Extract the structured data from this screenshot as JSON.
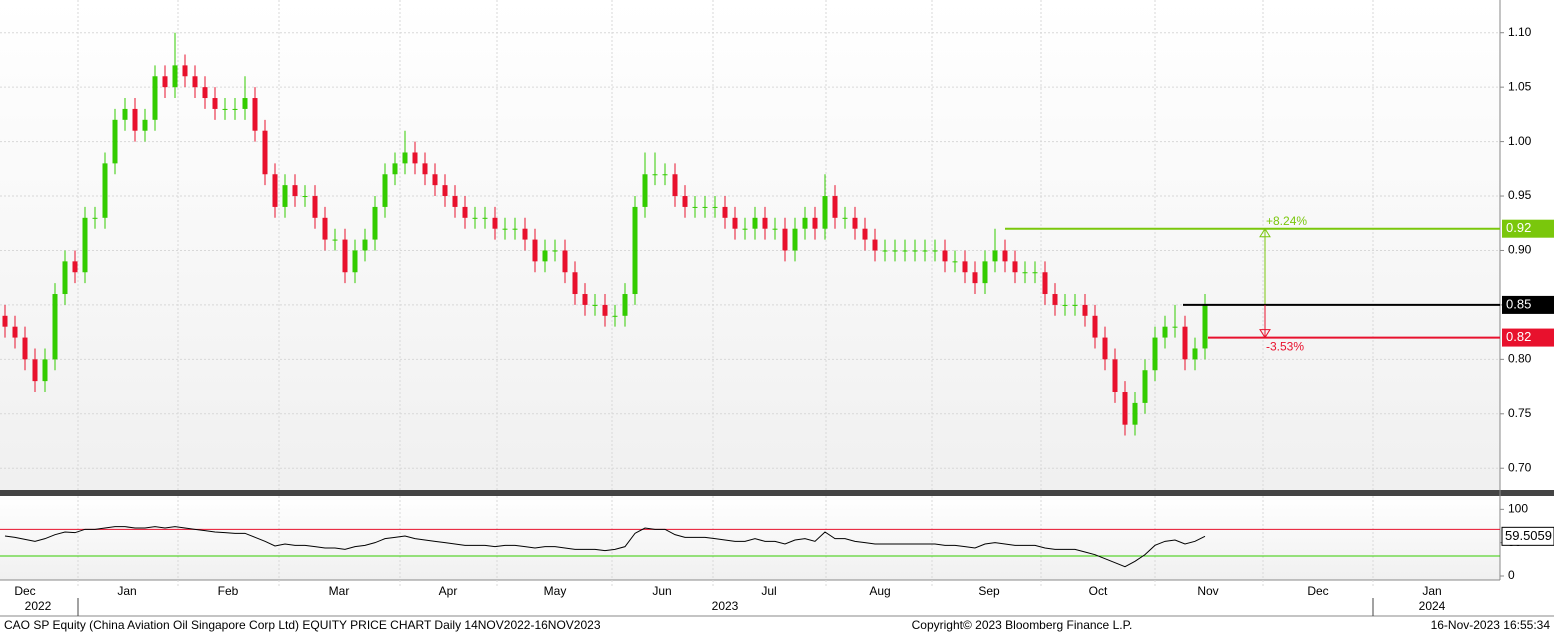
{
  "chart_data": {
    "type": "candlestick",
    "title": "CAO SP Equity (China Aviation Oil Singapore Corp Ltd) EQUITY PRICE CHART  Daily 14NOV2022-16NOV2023",
    "copyright": "Copyright© 2023 Bloomberg Finance L.P.",
    "timestamp": "16-Nov-2023 16:55:34",
    "months": [
      "Dec",
      "Jan",
      "Feb",
      "Mar",
      "Apr",
      "May",
      "Jun",
      "Jul",
      "Aug",
      "Sep",
      "Oct",
      "Nov",
      "Dec",
      "Jan"
    ],
    "years": [
      "2022",
      "2023",
      "2024"
    ],
    "up_color": "#33cc00",
    "down_color": "#e8112d",
    "open": [
      0.84,
      0.83,
      0.82,
      0.8,
      0.78,
      0.8,
      0.86,
      0.89,
      0.88,
      0.93,
      0.93,
      0.98,
      1.02,
      1.03,
      1.01,
      1.02,
      1.06,
      1.05,
      1.07,
      1.06,
      1.05,
      1.04,
      1.03,
      1.03,
      1.03,
      1.04,
      1.01,
      0.97,
      0.94,
      0.96,
      0.95,
      0.95,
      0.93,
      0.91,
      0.91,
      0.88,
      0.9,
      0.91,
      0.94,
      0.97,
      0.98,
      0.99,
      0.98,
      0.97,
      0.96,
      0.95,
      0.94,
      0.93,
      0.93,
      0.93,
      0.92,
      0.92,
      0.92,
      0.91,
      0.89,
      0.9,
      0.9,
      0.88,
      0.86,
      0.85,
      0.85,
      0.84,
      0.84,
      0.86,
      0.94,
      0.97,
      0.97,
      0.97,
      0.95,
      0.94,
      0.94,
      0.94,
      0.94,
      0.93,
      0.92,
      0.92,
      0.93,
      0.92,
      0.92,
      0.9,
      0.92,
      0.93,
      0.92,
      0.95,
      0.93,
      0.93,
      0.92,
      0.91,
      0.9,
      0.9,
      0.9,
      0.9,
      0.9,
      0.9,
      0.9,
      0.89,
      0.89,
      0.88,
      0.87,
      0.89,
      0.9,
      0.89,
      0.88,
      0.88,
      0.88,
      0.86,
      0.85,
      0.85,
      0.85,
      0.84,
      0.82,
      0.8,
      0.77,
      0.74,
      0.76,
      0.79,
      0.82,
      0.83,
      0.83,
      0.8,
      0.81
    ],
    "high": [
      0.85,
      0.84,
      0.83,
      0.81,
      0.81,
      0.87,
      0.9,
      0.9,
      0.94,
      0.94,
      0.99,
      1.03,
      1.04,
      1.04,
      1.03,
      1.07,
      1.07,
      1.1,
      1.08,
      1.07,
      1.06,
      1.05,
      1.04,
      1.04,
      1.06,
      1.05,
      1.02,
      0.98,
      0.97,
      0.97,
      0.96,
      0.96,
      0.94,
      0.92,
      0.92,
      0.91,
      0.92,
      0.95,
      0.98,
      0.99,
      1.01,
      1.0,
      0.99,
      0.98,
      0.97,
      0.96,
      0.95,
      0.94,
      0.94,
      0.94,
      0.93,
      0.93,
      0.93,
      0.92,
      0.91,
      0.91,
      0.91,
      0.89,
      0.87,
      0.86,
      0.86,
      0.85,
      0.87,
      0.95,
      0.99,
      0.99,
      0.98,
      0.98,
      0.96,
      0.95,
      0.95,
      0.95,
      0.95,
      0.94,
      0.93,
      0.94,
      0.94,
      0.93,
      0.93,
      0.93,
      0.94,
      0.94,
      0.97,
      0.96,
      0.94,
      0.94,
      0.93,
      0.92,
      0.91,
      0.91,
      0.91,
      0.91,
      0.91,
      0.91,
      0.91,
      0.9,
      0.9,
      0.89,
      0.9,
      0.92,
      0.91,
      0.9,
      0.89,
      0.89,
      0.89,
      0.87,
      0.86,
      0.86,
      0.86,
      0.85,
      0.83,
      0.81,
      0.78,
      0.77,
      0.8,
      0.83,
      0.84,
      0.85,
      0.84,
      0.82,
      0.86
    ],
    "low": [
      0.82,
      0.81,
      0.79,
      0.77,
      0.77,
      0.79,
      0.85,
      0.87,
      0.87,
      0.92,
      0.92,
      0.97,
      1.01,
      1.0,
      1.0,
      1.01,
      1.04,
      1.04,
      1.05,
      1.04,
      1.03,
      1.02,
      1.02,
      1.02,
      1.02,
      1.0,
      0.96,
      0.93,
      0.93,
      0.94,
      0.94,
      0.92,
      0.9,
      0.9,
      0.87,
      0.87,
      0.89,
      0.9,
      0.93,
      0.96,
      0.97,
      0.97,
      0.96,
      0.95,
      0.94,
      0.93,
      0.92,
      0.92,
      0.92,
      0.91,
      0.91,
      0.91,
      0.9,
      0.88,
      0.88,
      0.89,
      0.87,
      0.85,
      0.84,
      0.84,
      0.83,
      0.83,
      0.83,
      0.85,
      0.93,
      0.96,
      0.96,
      0.94,
      0.93,
      0.93,
      0.93,
      0.93,
      0.92,
      0.91,
      0.91,
      0.91,
      0.91,
      0.91,
      0.89,
      0.89,
      0.91,
      0.91,
      0.91,
      0.92,
      0.92,
      0.91,
      0.9,
      0.89,
      0.89,
      0.89,
      0.89,
      0.89,
      0.89,
      0.89,
      0.88,
      0.88,
      0.87,
      0.86,
      0.86,
      0.88,
      0.88,
      0.87,
      0.87,
      0.87,
      0.85,
      0.84,
      0.84,
      0.84,
      0.83,
      0.81,
      0.79,
      0.76,
      0.73,
      0.73,
      0.75,
      0.78,
      0.81,
      0.82,
      0.79,
      0.79,
      0.8
    ],
    "close": [
      0.83,
      0.82,
      0.8,
      0.78,
      0.8,
      0.86,
      0.89,
      0.88,
      0.93,
      0.93,
      0.98,
      1.02,
      1.03,
      1.01,
      1.02,
      1.06,
      1.05,
      1.07,
      1.06,
      1.05,
      1.04,
      1.03,
      1.03,
      1.03,
      1.04,
      1.01,
      0.97,
      0.94,
      0.96,
      0.95,
      0.95,
      0.93,
      0.91,
      0.91,
      0.88,
      0.9,
      0.91,
      0.94,
      0.97,
      0.98,
      0.99,
      0.98,
      0.97,
      0.96,
      0.95,
      0.94,
      0.93,
      0.93,
      0.93,
      0.92,
      0.92,
      0.92,
      0.91,
      0.89,
      0.9,
      0.9,
      0.88,
      0.86,
      0.85,
      0.85,
      0.84,
      0.84,
      0.86,
      0.94,
      0.97,
      0.97,
      0.97,
      0.95,
      0.94,
      0.94,
      0.94,
      0.94,
      0.93,
      0.92,
      0.92,
      0.93,
      0.92,
      0.92,
      0.9,
      0.92,
      0.93,
      0.92,
      0.95,
      0.93,
      0.93,
      0.92,
      0.91,
      0.9,
      0.9,
      0.9,
      0.9,
      0.9,
      0.9,
      0.9,
      0.89,
      0.89,
      0.88,
      0.87,
      0.89,
      0.9,
      0.89,
      0.88,
      0.88,
      0.88,
      0.86,
      0.85,
      0.85,
      0.85,
      0.84,
      0.82,
      0.8,
      0.77,
      0.74,
      0.76,
      0.79,
      0.82,
      0.83,
      0.83,
      0.8,
      0.81,
      0.85
    ],
    "ylim": [
      0.68,
      1.1227
    ],
    "yticks": [
      {
        "value": 0.7,
        "label": "0.70"
      },
      {
        "value": 0.75,
        "label": "0.75"
      },
      {
        "value": 0.8,
        "label": "0.80"
      },
      {
        "value": 0.85,
        "label": "0.85"
      },
      {
        "value": 0.9,
        "label": "0.90"
      },
      {
        "value": 0.95,
        "label": "0.95"
      },
      {
        "value": 1.0,
        "label": "1.00"
      },
      {
        "value": 1.05,
        "label": "1.05"
      },
      {
        "value": 1.1,
        "label": "1.10"
      }
    ],
    "levels": [
      {
        "value": 0.92,
        "color": "#7ac70c",
        "change": "+8.24%"
      },
      {
        "value": 0.85,
        "color": "#000000"
      },
      {
        "value": 0.82,
        "color": "#e8112d",
        "change": "-3.53%"
      }
    ],
    "rsi": {
      "color": "#000000",
      "values": [
        60,
        58,
        55,
        52,
        56,
        62,
        66,
        65,
        70,
        70,
        72,
        74,
        74,
        72,
        72,
        74,
        72,
        74,
        72,
        70,
        68,
        66,
        65,
        64,
        64,
        58,
        52,
        45,
        48,
        46,
        46,
        44,
        42,
        42,
        40,
        44,
        46,
        50,
        56,
        58,
        60,
        56,
        54,
        52,
        50,
        48,
        46,
        46,
        46,
        44,
        46,
        46,
        44,
        42,
        44,
        44,
        42,
        40,
        40,
        40,
        38,
        40,
        44,
        64,
        72,
        70,
        70,
        62,
        58,
        58,
        58,
        56,
        54,
        52,
        52,
        56,
        52,
        52,
        48,
        54,
        56,
        52,
        66,
        56,
        56,
        52,
        50,
        48,
        48,
        48,
        48,
        48,
        48,
        48,
        46,
        46,
        44,
        42,
        48,
        50,
        48,
        46,
        46,
        46,
        42,
        40,
        40,
        40,
        36,
        32,
        26,
        20,
        14,
        22,
        32,
        46,
        52,
        54,
        48,
        52,
        59.5059
      ],
      "last_label": "59.5059",
      "ylim": [
        -3,
        114
      ],
      "yticks": [
        0,
        50,
        100
      ],
      "overbought": 70,
      "oversold": 30
    }
  }
}
